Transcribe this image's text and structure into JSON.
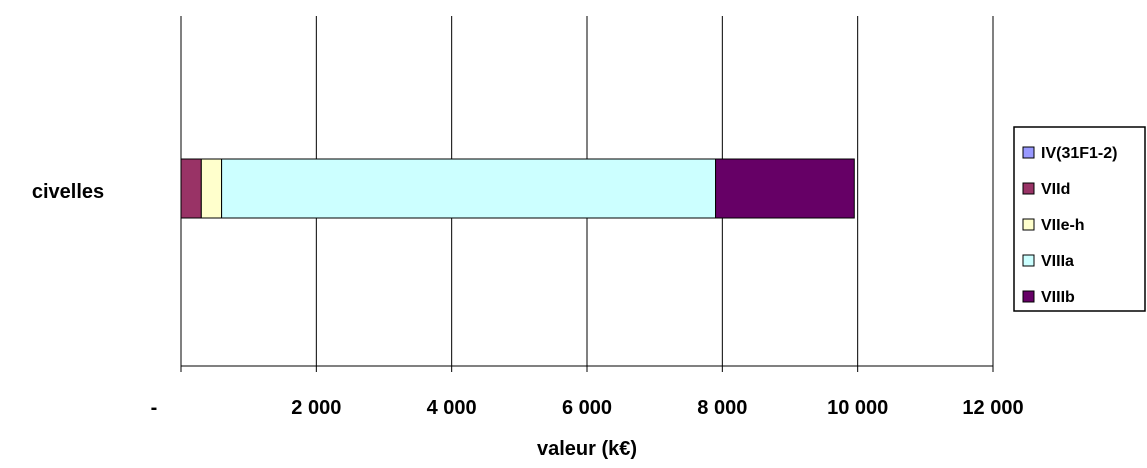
{
  "chart_data": {
    "type": "bar",
    "orientation": "horizontal",
    "stacked": true,
    "categories": [
      "civelles"
    ],
    "series": [
      {
        "name": "IV(31F1-2)",
        "color": "#9999ff",
        "values": [
          0
        ]
      },
      {
        "name": "VIId",
        "color": "#993366",
        "values": [
          300
        ]
      },
      {
        "name": "VIIe-h",
        "color": "#ffffcc",
        "values": [
          300
        ]
      },
      {
        "name": "VIIIa",
        "color": "#ccffff",
        "values": [
          7300
        ]
      },
      {
        "name": "VIIIb",
        "color": "#660066",
        "values": [
          2050
        ]
      }
    ],
    "xlabel": "valeur (k€)",
    "ylabel": "",
    "xlim": [
      0,
      12000
    ],
    "xticks": [
      0,
      2000,
      4000,
      6000,
      8000,
      10000,
      12000
    ],
    "xtick_labels": [
      "-",
      "2 000",
      "4 000",
      "6 000",
      "8 000",
      "10 000",
      "12 000"
    ],
    "grid": "vertical",
    "legend_position": "right"
  }
}
